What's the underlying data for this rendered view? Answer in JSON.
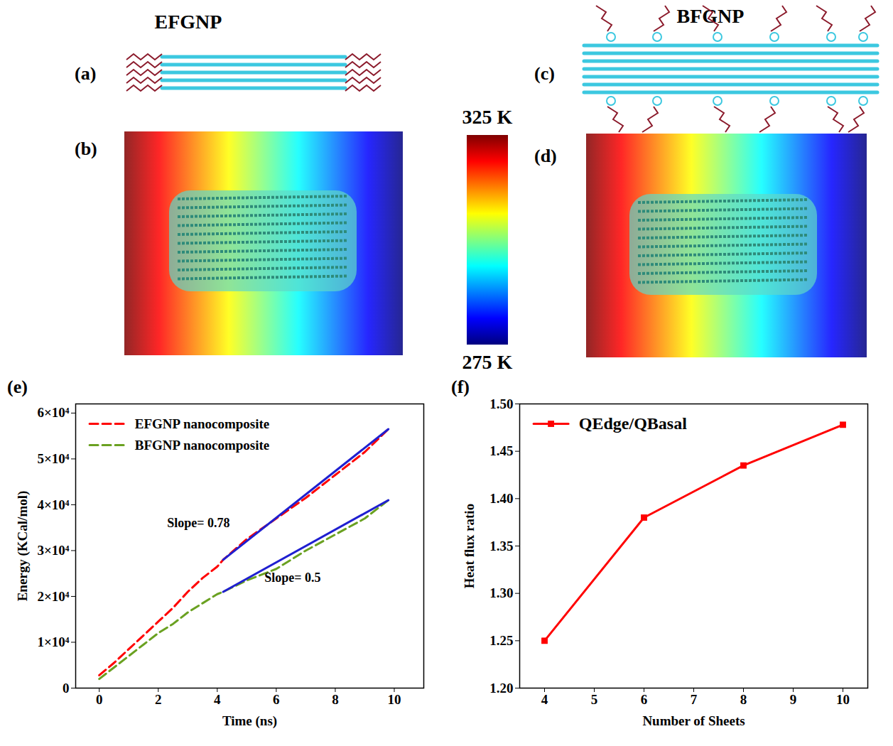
{
  "top": {
    "titles": [
      "EFGNP",
      "BFGNP"
    ],
    "labels": [
      "(a)",
      "(b)",
      "(c)",
      "(d)"
    ],
    "colorbar": {
      "range": [
        275,
        325
      ],
      "ticks": [
        {
          "value": 325,
          "label": "325 K"
        },
        {
          "value": 275,
          "label": "275 K"
        }
      ]
    }
  },
  "chart_data": [
    {
      "type": "line",
      "title": "(e)",
      "xlabel": "Time (ns)",
      "ylabel": "Energy (KCal/mol)",
      "xlim": [
        -0.8,
        11
      ],
      "xticks": [
        0,
        2,
        4,
        6,
        8,
        10
      ],
      "ylim": [
        0,
        62000
      ],
      "yticks": [
        0,
        {
          "value": 10000,
          "label": "1×10⁴"
        },
        {
          "value": 20000,
          "label": "2×10⁴"
        },
        {
          "value": 30000,
          "label": "3×10⁴"
        },
        {
          "value": 40000,
          "label": "4×10⁴"
        },
        {
          "value": 50000,
          "label": "5×10⁴"
        },
        {
          "value": 60000,
          "label": "6×10⁴"
        }
      ],
      "legend": "upper left",
      "series": [
        {
          "name": "EFGNP nanocomposite",
          "color": "#ff0000",
          "line_style": "dashed",
          "x": [
            0,
            0.5,
            1,
            1.5,
            2,
            2.5,
            3,
            3.5,
            4,
            4.2,
            5,
            6,
            7,
            8,
            9,
            9.8
          ],
          "values": [
            2800,
            5500,
            8500,
            11500,
            14500,
            17500,
            21000,
            24000,
            26500,
            28000,
            32500,
            37000,
            41500,
            46500,
            51500,
            56500
          ]
        },
        {
          "name": "BFGNP nanocomposite",
          "color": "#6aa121",
          "line_style": "dashed",
          "x": [
            0,
            0.5,
            1,
            1.5,
            2,
            2.5,
            3,
            3.5,
            4,
            4.2,
            5,
            6,
            7,
            8,
            9,
            9.8
          ],
          "values": [
            2000,
            4500,
            7000,
            9500,
            12000,
            14000,
            16500,
            18500,
            20500,
            21000,
            23500,
            26000,
            30000,
            33500,
            37000,
            41000
          ]
        },
        {
          "color": "#1f1fd0",
          "line_style": "solid",
          "x": [
            4.2,
            9.8
          ],
          "values": [
            28000,
            56500
          ]
        },
        {
          "color": "#1f1fd0",
          "line_style": "solid",
          "x": [
            4.2,
            9.8
          ],
          "values": [
            21000,
            41000
          ]
        }
      ],
      "annotations": [
        {
          "text": "Slope= 0.78",
          "x": 2.3,
          "y": 36000
        },
        {
          "text": "Slope= 0.5",
          "x": 5.6,
          "y": 24000
        }
      ]
    },
    {
      "type": "line",
      "title": "(f)",
      "xlabel": "Number of Sheets",
      "ylabel": "Heat flux ratio",
      "xlim": [
        3.5,
        10.5
      ],
      "xticks": [
        4,
        5,
        6,
        7,
        8,
        9,
        10
      ],
      "ylim": [
        1.2,
        1.5
      ],
      "yticks": [
        {
          "value": 1.2,
          "label": "1.20"
        },
        {
          "value": 1.25,
          "label": "1.25"
        },
        {
          "value": 1.3,
          "label": "1.30"
        },
        {
          "value": 1.35,
          "label": "1.35"
        },
        {
          "value": 1.4,
          "label": "1.40"
        },
        {
          "value": 1.45,
          "label": "1.45"
        },
        {
          "value": 1.5,
          "label": "1.50"
        }
      ],
      "legend": "upper left",
      "series": [
        {
          "name": "QEdge/QBasal",
          "color": "#ff0000",
          "marker": "square",
          "line_style": "solid",
          "x": [
            4,
            6,
            8,
            10
          ],
          "values": [
            1.25,
            1.38,
            1.435,
            1.478
          ]
        }
      ]
    }
  ]
}
